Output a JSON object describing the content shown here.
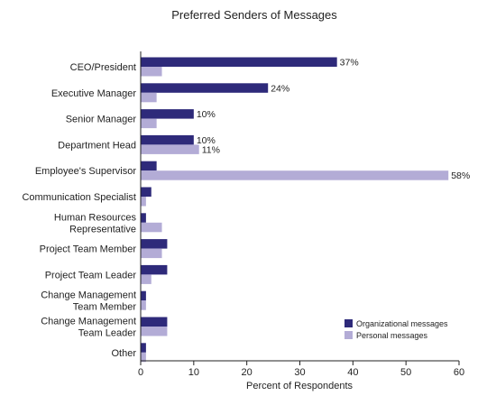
{
  "chart_data": {
    "type": "bar",
    "orientation": "horizontal",
    "title": "Preferred Senders of Messages",
    "xlabel": "Percent of Respondents",
    "ylabel": "",
    "xlim": [
      0,
      60
    ],
    "xticks": [
      0,
      10,
      20,
      30,
      40,
      50,
      60
    ],
    "grid": false,
    "legend_position": "bottom-right",
    "categories": [
      "CEO/President",
      "Executive Manager",
      "Senior Manager",
      "Department Head",
      "Employee's Supervisor",
      "Communication Specialist",
      "Human Resources\nRepresentative",
      "Project Team Member",
      "Project Team Leader",
      "Change Management\nTeam Member",
      "Change Management\nTeam Leader",
      "Other"
    ],
    "series": [
      {
        "name": "Organizational messages",
        "color": "#2e2a7a",
        "values": [
          37,
          24,
          10,
          10,
          3,
          2,
          1,
          5,
          5,
          1,
          5,
          1
        ],
        "labels": [
          "37%",
          "24%",
          "10%",
          "10%",
          "",
          "",
          "",
          "",
          "",
          "",
          "",
          ""
        ]
      },
      {
        "name": "Personal messages",
        "color": "#b3acd6",
        "values": [
          4,
          3,
          3,
          11,
          58,
          1,
          4,
          4,
          2,
          1,
          5,
          1
        ],
        "labels": [
          "",
          "",
          "",
          "11%",
          "58%",
          "",
          "",
          "",
          "",
          "",
          "",
          ""
        ]
      }
    ]
  }
}
